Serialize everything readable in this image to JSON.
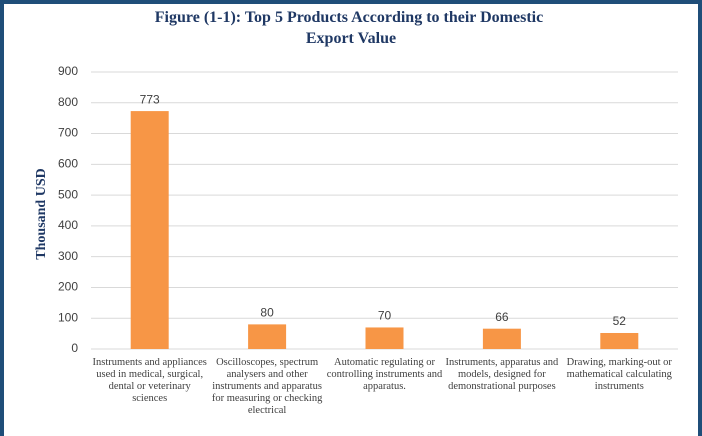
{
  "chart_data": {
    "type": "bar",
    "title": "Figure (1-1): Top 5 Products According to their Domestic Export Value",
    "y_label": "Thousand USD",
    "categories": [
      "Instruments and appliances used in medical, surgical, dental or veterinary sciences",
      "Oscilloscopes, spectrum analysers and other instruments and apparatus for measuring or checking electrical",
      "Automatic regulating or controlling instruments and apparatus.",
      "Instruments, apparatus and models, designed for demonstrational purposes",
      "Drawing, marking-out or mathematical calculating instruments"
    ],
    "values": [
      773,
      80,
      70,
      66,
      52
    ],
    "color": "#f79646",
    "ylim": [
      0,
      900
    ],
    "yticks": [
      0,
      100,
      200,
      300,
      400,
      500,
      600,
      700,
      800,
      900
    ],
    "grid": true
  }
}
